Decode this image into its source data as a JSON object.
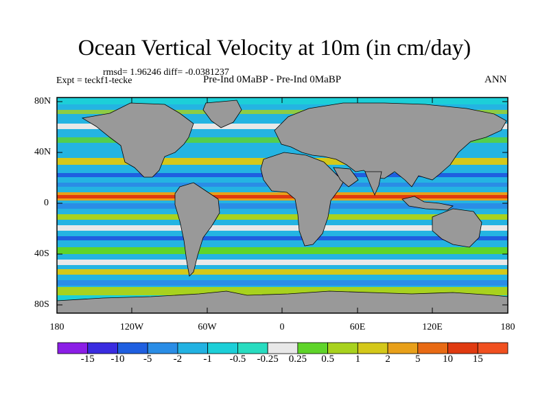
{
  "title": "Ocean Vertical Velocity at 10m (in cm/day)",
  "stats": "rmsd= 1.96246 diff= -0.0381237",
  "left_label": "Expt = teckf1-tecke",
  "center_label": "Pre-Ind 0MaBP - Pre-Ind 0MaBP",
  "right_label": "ANN",
  "lat_labels": [
    "80N",
    "40N",
    "0",
    "40S",
    "80S"
  ],
  "lon_labels": [
    "180",
    "120W",
    "60W",
    "0",
    "60E",
    "120E",
    "180"
  ],
  "colorbar": {
    "labels": [
      "-15",
      "-10",
      "-5",
      "-2",
      "-1",
      "-0.5",
      "-0.25",
      "0.25",
      "0.5",
      "1",
      "2",
      "5",
      "10",
      "15"
    ],
    "colors": [
      "#8b1ee6",
      "#3a2ce0",
      "#1f5fe0",
      "#2a8de6",
      "#22b2e2",
      "#1ccfd8",
      "#28dcc0",
      "#e8e8e8",
      "#5fd42a",
      "#a8d21e",
      "#d4c81a",
      "#e8a01a",
      "#e86a14",
      "#e03a10",
      "#f05020"
    ]
  },
  "colors": {
    "land": "#999999",
    "ocean_default": "#24b4e2"
  }
}
